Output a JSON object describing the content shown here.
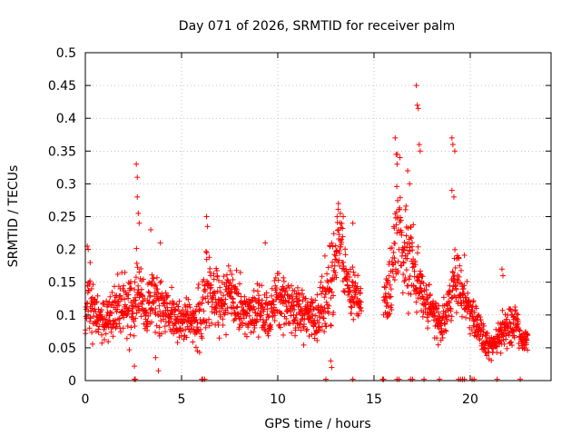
{
  "chart_data": {
    "type": "scatter",
    "title": "Day 071 of 2026, SRMTID for receiver palm",
    "xlabel": "GPS time / hours",
    "ylabel": "SRMTID / TECUs",
    "xlim": [
      0,
      24.2
    ],
    "ylim": [
      0,
      0.5
    ],
    "x_ticks": [
      0,
      5,
      10,
      15,
      20
    ],
    "x_tick_labels": [
      "0",
      "5",
      "10",
      "15",
      "20"
    ],
    "y_ticks": [
      0,
      0.05,
      0.1,
      0.15,
      0.2,
      0.25,
      0.3,
      0.35,
      0.4,
      0.45,
      0.5
    ],
    "y_tick_labels": [
      "0",
      "0.05",
      "0.1",
      "0.15",
      "0.2",
      "0.25",
      "0.3",
      "0.35",
      "0.4",
      "0.45",
      "0.5"
    ],
    "grid": true,
    "marker": "plus",
    "color": "#ff0000",
    "series": [
      {
        "name": "SRMTID",
        "envelope": {
          "x": [
            0,
            0.15,
            0.5,
            1.0,
            1.5,
            2.0,
            2.5,
            2.7,
            3.0,
            3.5,
            4.0,
            4.5,
            5.0,
            5.5,
            6.0,
            6.3,
            6.7,
            7.0,
            7.5,
            8.0,
            8.5,
            9.0,
            9.5,
            10.0,
            10.5,
            11.0,
            11.5,
            12.0,
            12.5,
            12.8,
            13.1,
            13.3,
            13.6,
            14.0,
            14.3,
            15.5,
            15.9,
            16.2,
            16.5,
            16.9,
            17.2,
            17.5,
            18.0,
            18.4,
            18.7,
            19.0,
            19.3,
            19.7,
            20.0,
            20.4,
            20.8,
            21.1,
            21.5,
            21.8,
            22.2,
            22.6,
            23.0
          ],
          "center": [
            0.09,
            0.12,
            0.1,
            0.09,
            0.1,
            0.12,
            0.11,
            0.15,
            0.1,
            0.12,
            0.11,
            0.1,
            0.09,
            0.09,
            0.1,
            0.15,
            0.12,
            0.12,
            0.14,
            0.11,
            0.1,
            0.11,
            0.1,
            0.12,
            0.11,
            0.11,
            0.1,
            0.09,
            0.12,
            0.16,
            0.2,
            0.19,
            0.15,
            0.13,
            0.12,
            0.12,
            0.14,
            0.25,
            0.19,
            0.2,
            0.15,
            0.13,
            0.11,
            0.08,
            0.1,
            0.12,
            0.16,
            0.13,
            0.1,
            0.08,
            0.06,
            0.05,
            0.07,
            0.08,
            0.09,
            0.07,
            0.06
          ],
          "spread": [
            0.03,
            0.05,
            0.035,
            0.03,
            0.04,
            0.04,
            0.04,
            0.05,
            0.04,
            0.04,
            0.04,
            0.03,
            0.03,
            0.03,
            0.04,
            0.05,
            0.04,
            0.04,
            0.04,
            0.04,
            0.03,
            0.035,
            0.03,
            0.04,
            0.035,
            0.04,
            0.03,
            0.035,
            0.04,
            0.05,
            0.05,
            0.06,
            0.04,
            0.03,
            0.025,
            0.03,
            0.05,
            0.07,
            0.06,
            0.07,
            0.05,
            0.035,
            0.03,
            0.03,
            0.03,
            0.03,
            0.05,
            0.04,
            0.03,
            0.03,
            0.02,
            0.015,
            0.02,
            0.03,
            0.03,
            0.02,
            0.015
          ]
        },
        "outliers": [
          [
            0.1,
            0.205
          ],
          [
            0.15,
            0.2
          ],
          [
            0.25,
            0.18
          ],
          [
            2.55,
            0.022
          ],
          [
            2.65,
            0.33
          ],
          [
            2.7,
            0.31
          ],
          [
            2.7,
            0.28
          ],
          [
            2.75,
            0.255
          ],
          [
            2.8,
            0.24
          ],
          [
            3.4,
            0.23
          ],
          [
            3.65,
            0.035
          ],
          [
            3.8,
            0.015
          ],
          [
            3.9,
            0.21
          ],
          [
            6.3,
            0.25
          ],
          [
            6.35,
            0.235
          ],
          [
            9.35,
            0.21
          ],
          [
            12.45,
            0.19
          ],
          [
            12.75,
            0.03
          ],
          [
            12.8,
            0.02
          ],
          [
            13.15,
            0.27
          ],
          [
            13.25,
            0.255
          ],
          [
            13.4,
            0.25
          ],
          [
            13.9,
            0.24
          ],
          [
            16.1,
            0.37
          ],
          [
            16.15,
            0.345
          ],
          [
            16.2,
            0.33
          ],
          [
            16.35,
            0.34
          ],
          [
            16.75,
            0.32
          ],
          [
            16.85,
            0.3
          ],
          [
            17.2,
            0.45
          ],
          [
            17.25,
            0.42
          ],
          [
            17.3,
            0.415
          ],
          [
            17.35,
            0.36
          ],
          [
            17.4,
            0.35
          ],
          [
            19.05,
            0.37
          ],
          [
            19.1,
            0.36
          ],
          [
            19.2,
            0.35
          ],
          [
            19.05,
            0.29
          ],
          [
            19.15,
            0.28
          ],
          [
            21.65,
            0.17
          ],
          [
            21.7,
            0.16
          ]
        ],
        "zeros": [
          2.55,
          2.6,
          6.05,
          6.1,
          6.2,
          12.5,
          13.9,
          15.45,
          15.5,
          16.2,
          16.3,
          16.9,
          17.0,
          17.6,
          18.4,
          19.4,
          19.5,
          19.6,
          19.7,
          20.1,
          20.2,
          21.4,
          22.6
        ]
      }
    ]
  }
}
